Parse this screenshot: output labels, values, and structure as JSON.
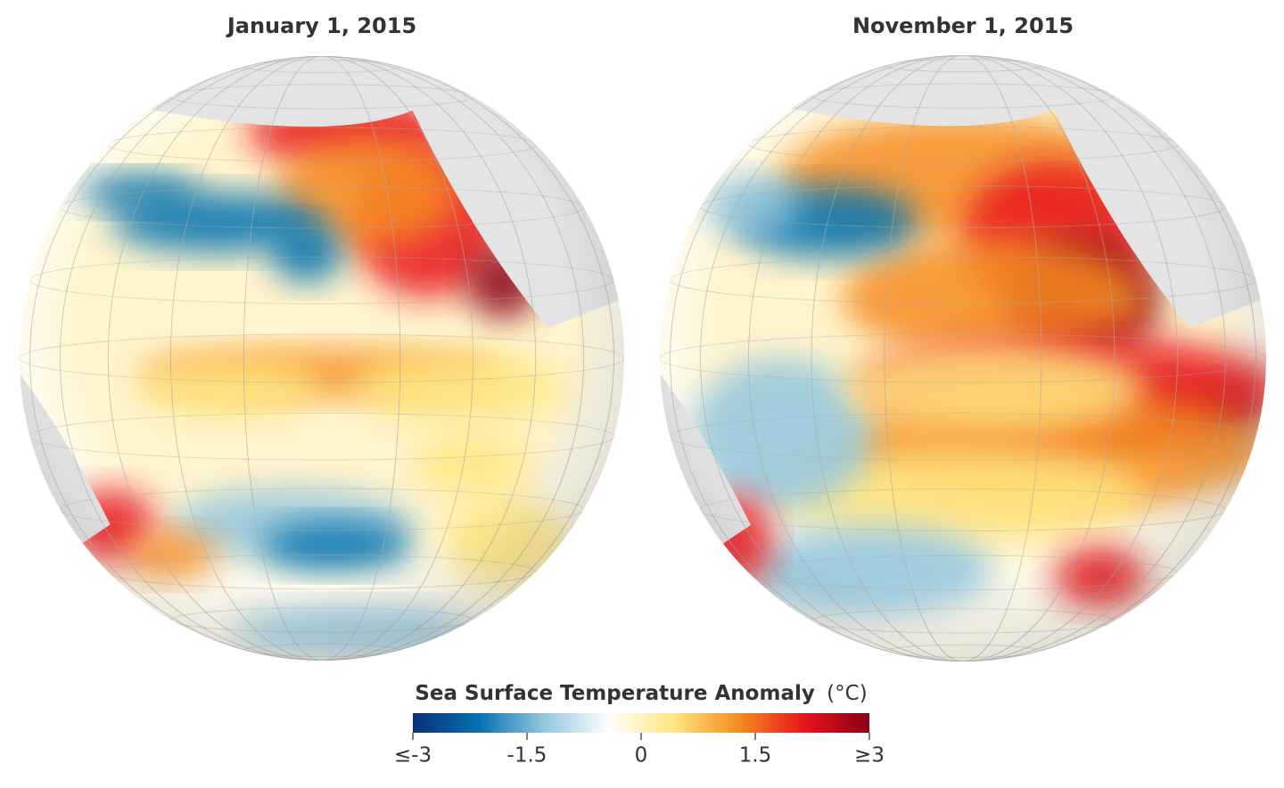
{
  "maps": [
    {
      "title": "January 1, 2015"
    },
    {
      "title": "November 1, 2015"
    }
  ],
  "legend": {
    "title": "Sea Surface Temperature Anomaly",
    "unit": "(°C)",
    "range": [
      -3,
      3
    ],
    "colors": [
      "#0a2f7a",
      "#0571b0",
      "#92c5de",
      "#ffffff",
      "#ffe680",
      "#f58c20",
      "#e8141b",
      "#8b0015"
    ],
    "ticks": [
      {
        "value": -3,
        "label": "≤-3"
      },
      -1.5,
      0,
      1.5,
      {
        "value": 3,
        "label": "≥3"
      }
    ]
  }
}
